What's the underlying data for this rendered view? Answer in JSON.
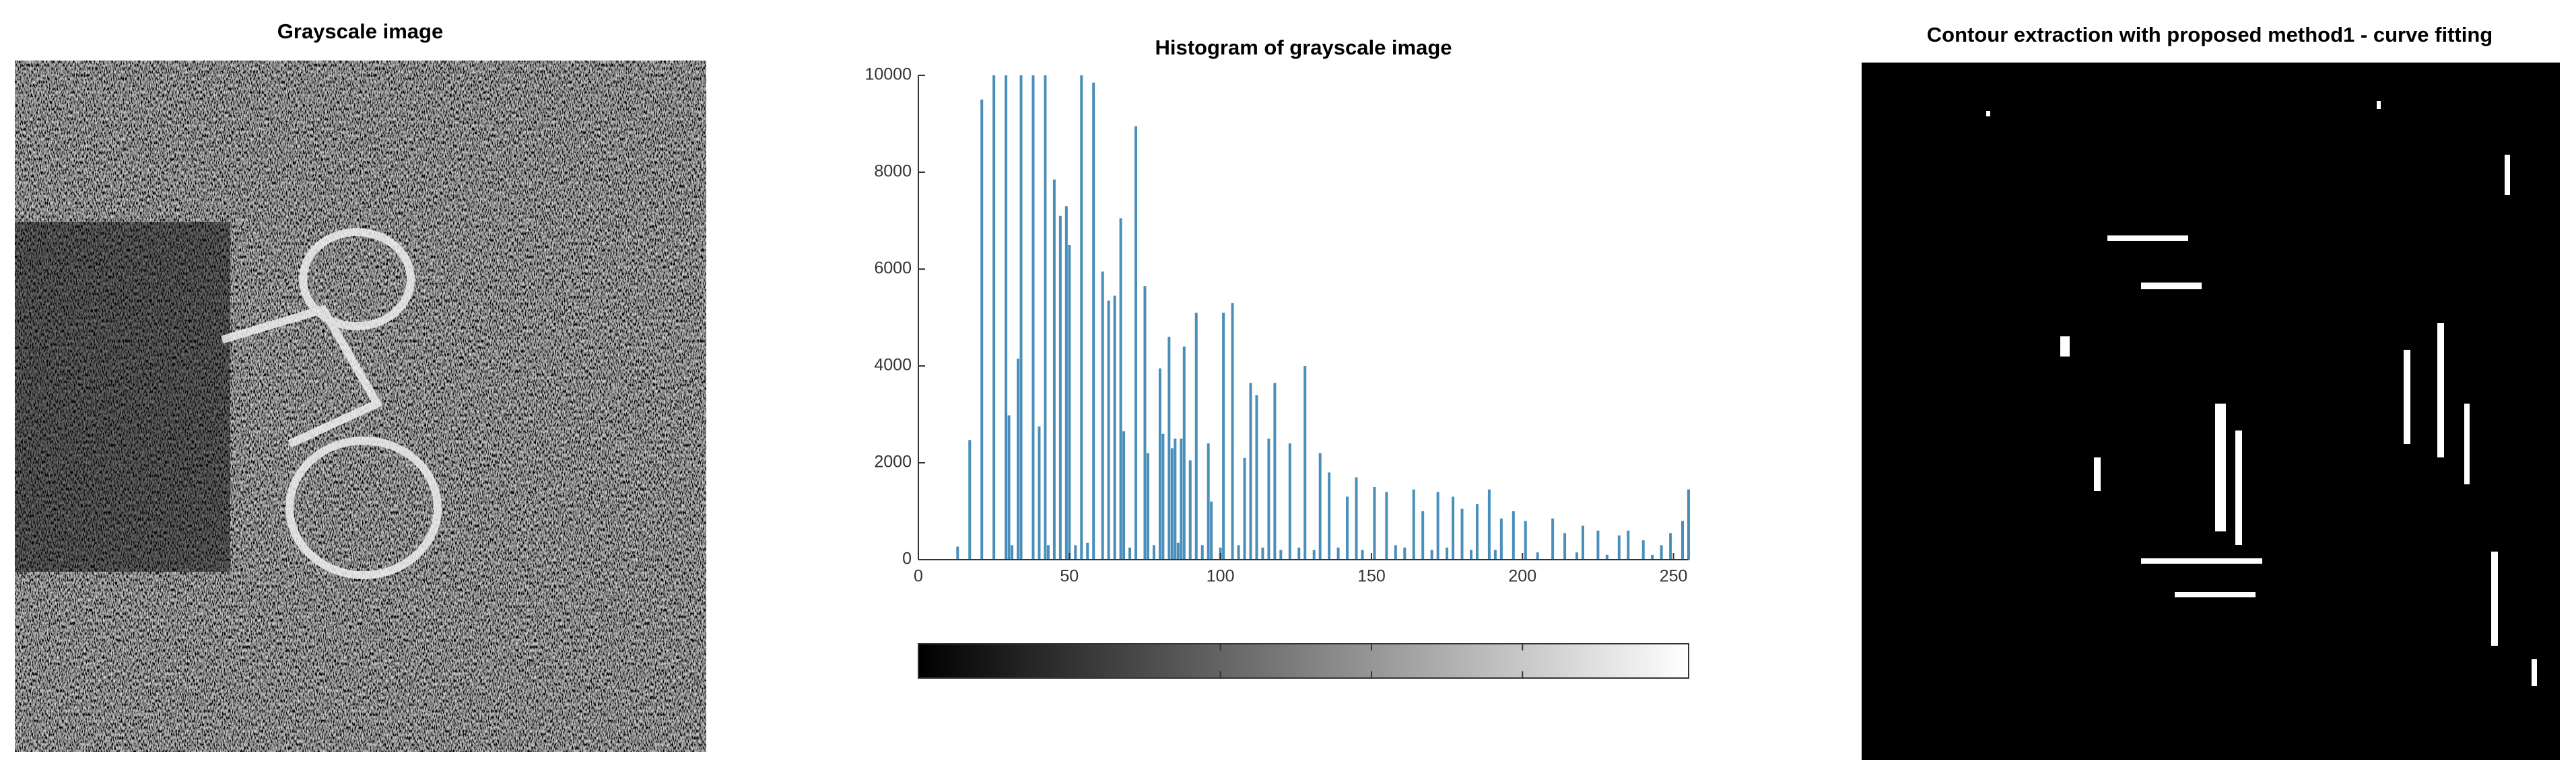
{
  "chart_data": [
    {
      "type": "image",
      "title": "Grayscale image"
    },
    {
      "type": "bar",
      "title": "Histogram of grayscale image",
      "color": "#4a8fba",
      "x": [
        13,
        17,
        21,
        25,
        29,
        30,
        31,
        33,
        34,
        38,
        40,
        42,
        43,
        45,
        47,
        49,
        50,
        52,
        54,
        56,
        58,
        61,
        63,
        65,
        67,
        68,
        70,
        72,
        75,
        76,
        78,
        80,
        81,
        83,
        84,
        85,
        86,
        87,
        88,
        90,
        92,
        94,
        96,
        97,
        100,
        101,
        104,
        106,
        108,
        110,
        112,
        114,
        116,
        118,
        120,
        123,
        126,
        128,
        131,
        133,
        136,
        139,
        142,
        145,
        147,
        151,
        155,
        158,
        161,
        164,
        167,
        170,
        172,
        175,
        177,
        180,
        183,
        185,
        189,
        191,
        193,
        197,
        201,
        205,
        210,
        214,
        218,
        220,
        225,
        228,
        232,
        235,
        240,
        243,
        246,
        249,
        253,
        255
      ],
      "values": [
        270,
        2470,
        9500,
        10000,
        10000,
        2980,
        300,
        4150,
        10000,
        10000,
        2750,
        10000,
        300,
        7850,
        7100,
        7300,
        6500,
        300,
        10000,
        350,
        9850,
        5950,
        5350,
        5450,
        7050,
        2650,
        250,
        8950,
        5650,
        2200,
        300,
        3950,
        2600,
        4600,
        2300,
        2500,
        350,
        2500,
        4400,
        2050,
        5100,
        300,
        2400,
        1200,
        250,
        5100,
        5300,
        300,
        2100,
        3650,
        3400,
        250,
        2500,
        3650,
        200,
        2400,
        250,
        4000,
        200,
        2200,
        1800,
        250,
        1300,
        1700,
        200,
        1500,
        1400,
        300,
        250,
        1450,
        1000,
        200,
        1400,
        250,
        1300,
        1050,
        200,
        1150,
        1450,
        200,
        850,
        1000,
        800,
        150,
        850,
        550,
        150,
        700,
        600,
        100,
        500,
        600,
        400,
        100,
        300,
        550,
        800,
        1450
      ],
      "xlim": [
        0,
        255
      ],
      "xticks": [
        0,
        50,
        100,
        150,
        200,
        250
      ],
      "ylim": [
        0,
        10000
      ],
      "yticks": [
        0,
        2000,
        4000,
        6000,
        8000,
        10000
      ]
    },
    {
      "type": "image",
      "title": "Contour extraction with proposed method1 - curve fitting"
    }
  ]
}
